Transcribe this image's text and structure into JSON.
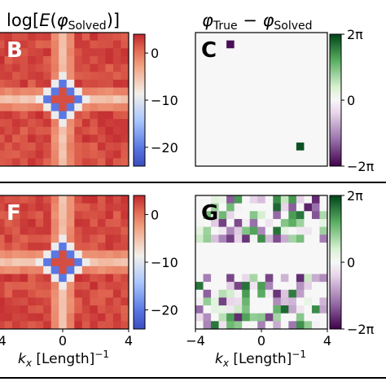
{
  "titles": {
    "left_top": "log[E(φSolved)]",
    "right_top": "φTrue − φSolved"
  },
  "panels": {
    "b": "B",
    "c": "C",
    "f": "F",
    "g": "G"
  },
  "axes": {
    "xlabel": "kx [Length]⁻¹",
    "x_ticks": [
      "−4",
      "0",
      "4"
    ]
  },
  "colorbars": {
    "energy": {
      "ticks": [
        "0",
        "−10",
        "−20"
      ],
      "values": [
        0,
        -10,
        -20
      ],
      "range": [
        -24,
        4
      ]
    },
    "phase": {
      "ticks": [
        "2π",
        "0",
        "−2π"
      ],
      "values": [
        6.283,
        0,
        -6.283
      ],
      "range": [
        -6.283,
        6.283
      ]
    }
  },
  "colors": {
    "coolwarm_low": "#3b4cc0",
    "coolwarm_mid": "#f2efea",
    "coolwarm_high": "#d0332f",
    "prgn_low": "#40004b",
    "prgn_mid": "#f7f7f7",
    "prgn_high": "#00441b",
    "divider": "#000000"
  },
  "chart_data": [
    {
      "type": "heatmap",
      "panel": "B",
      "title": "log[E(φSolved)]",
      "xlabel": "",
      "xlim": [
        -4,
        4
      ],
      "grid": [
        17,
        17
      ],
      "colormap": "coolwarm",
      "crop": "left portion visible",
      "structure": "cross-shaped ridge centered at kx=0, low-energy diamond (≈ −20) surrounding a high center"
    },
    {
      "type": "heatmap",
      "panel": "C",
      "title": "φTrue − φSolved",
      "xlabel": "",
      "xlim": [
        -4,
        4
      ],
      "grid": [
        17,
        17
      ],
      "colormap": "PRGn",
      "background_value": 0,
      "nonzero_cells": [
        {
          "col": 4,
          "row": 1,
          "value": -6.0
        },
        {
          "col": 13,
          "row": 14,
          "value": 6.0
        }
      ]
    },
    {
      "type": "heatmap",
      "panel": "F",
      "xlabel": "kx [Length]⁻¹",
      "xlim": [
        -4,
        4
      ],
      "grid": [
        17,
        17
      ],
      "colormap": "coolwarm",
      "crop": "left portion visible",
      "structure": "same cross-shaped energy pattern as panel B"
    },
    {
      "type": "heatmap",
      "panel": "G",
      "xlabel": "kx [Length]⁻¹",
      "xlim": [
        -4,
        4
      ],
      "grid": [
        17,
        17
      ],
      "colormap": "PRGn",
      "structure": "random phase errors in top and bottom bands, zero band across middle rows"
    }
  ]
}
